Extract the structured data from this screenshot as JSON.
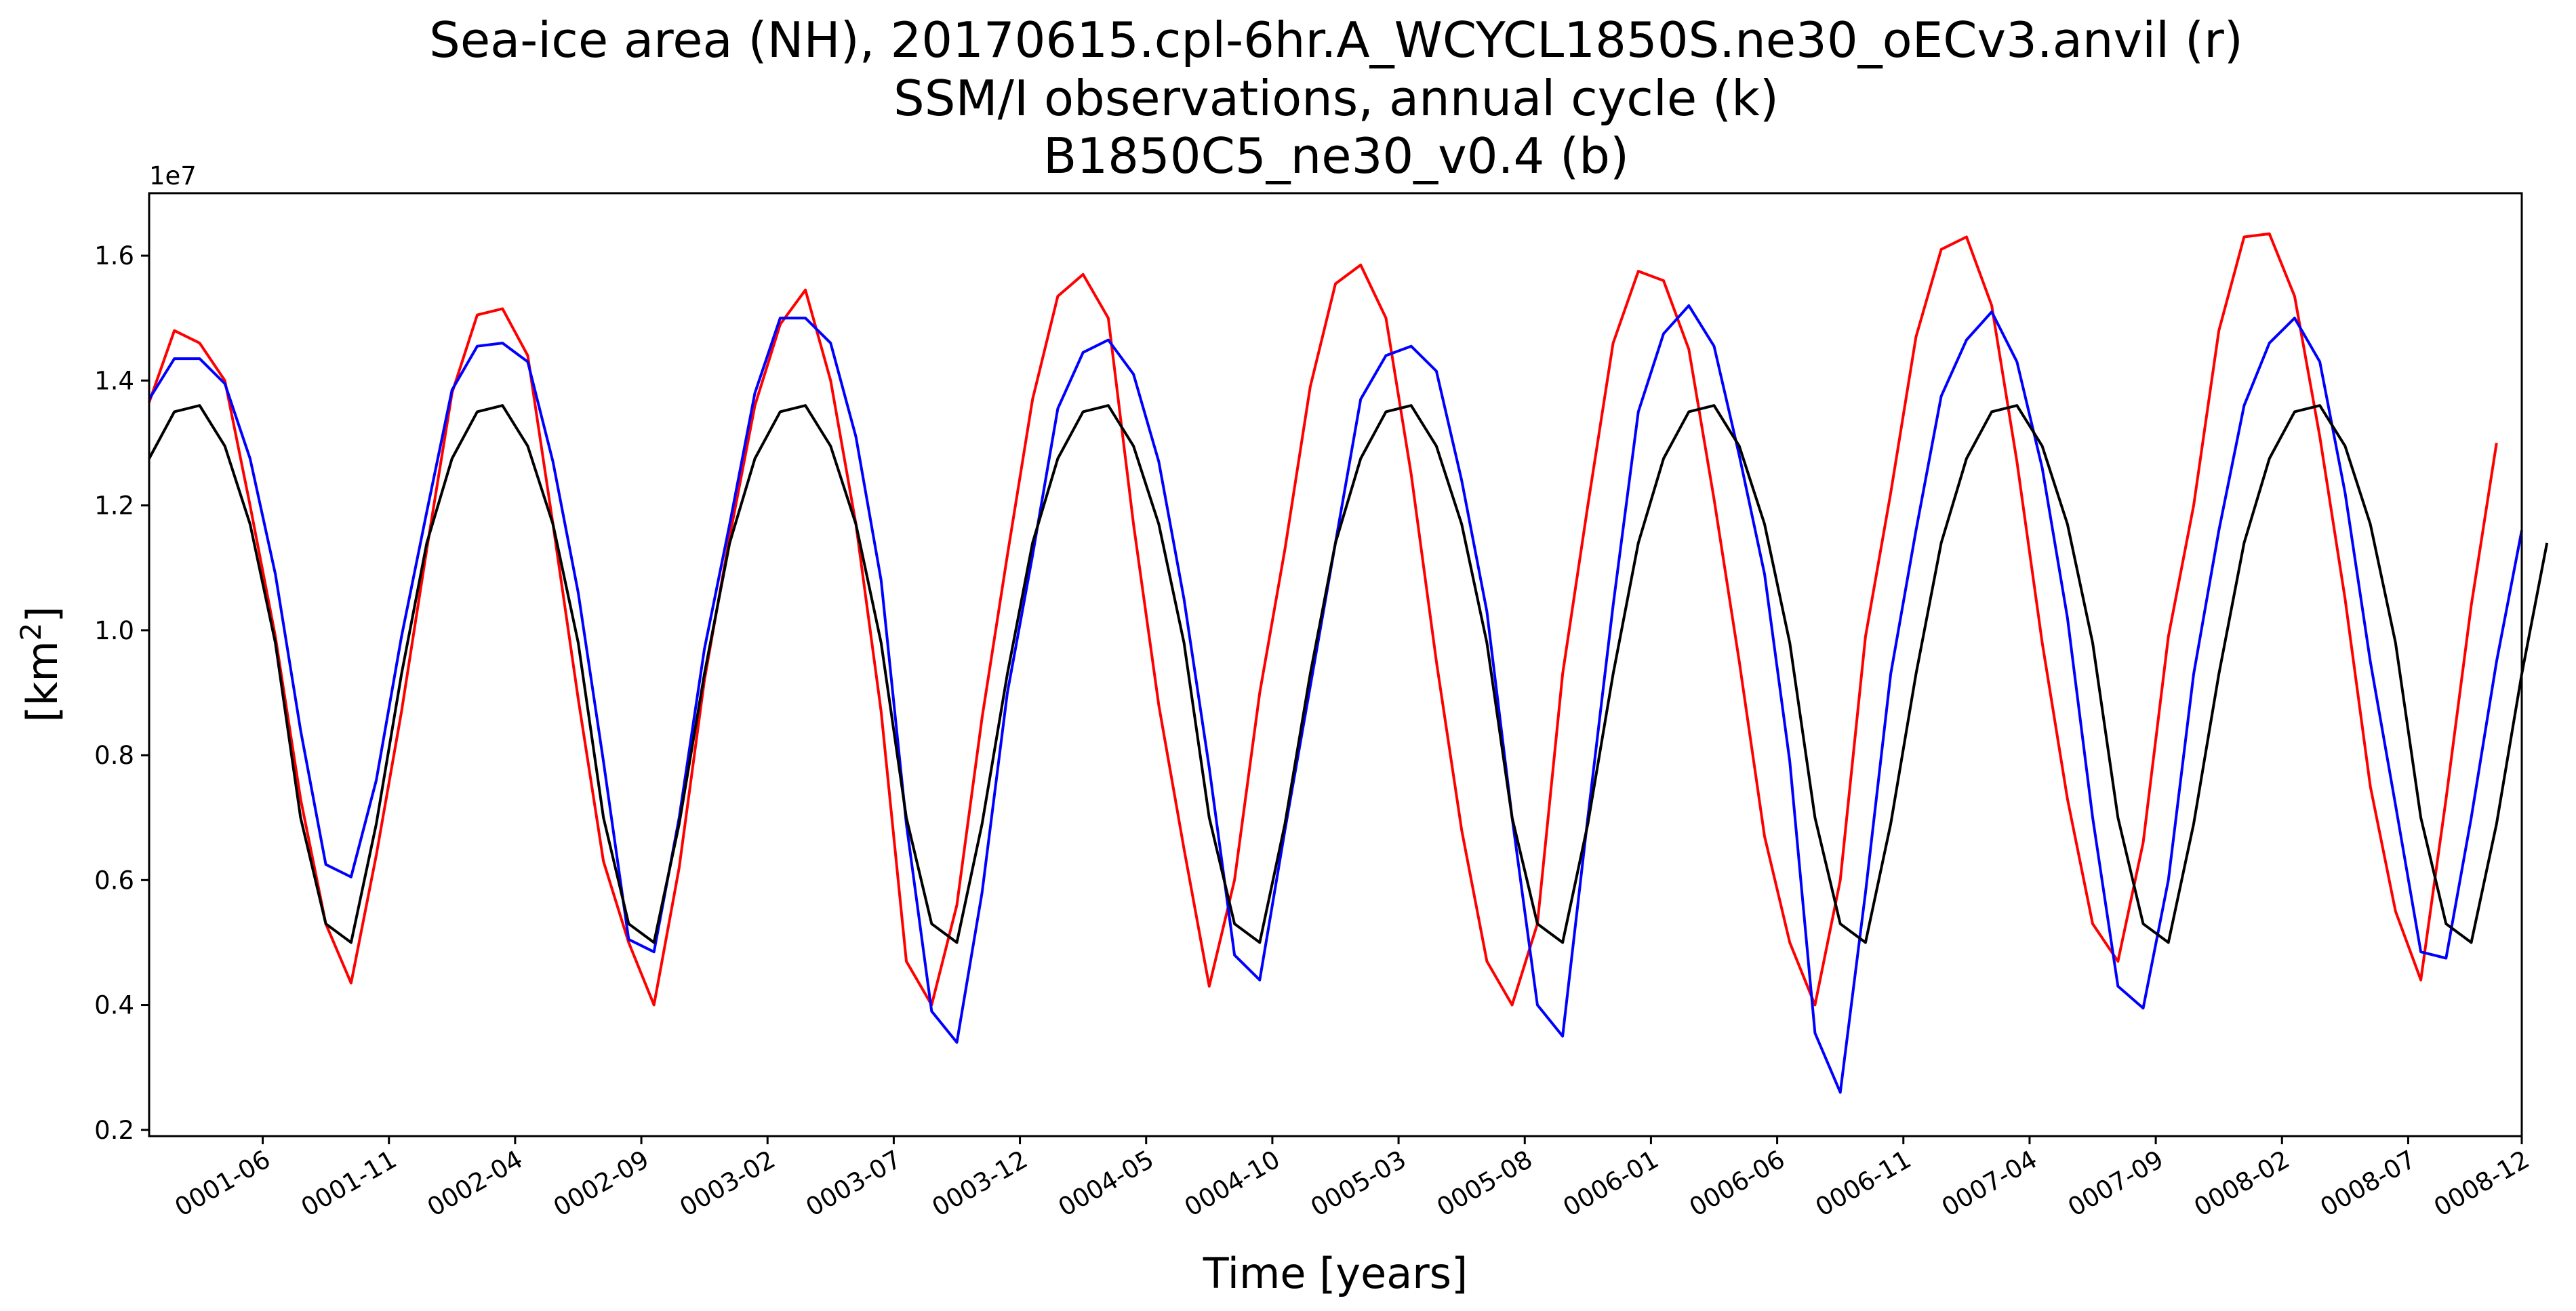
{
  "chart_data": {
    "type": "line",
    "title_lines": [
      "Sea-ice area (NH), 20170615.cpl-6hr.A_WCYCL1850S.ne30_oECv3.anvil (r)",
      "SSM/I observations, annual cycle (k)",
      "B1850C5_ne30_v0.4 (b)"
    ],
    "xlabel": "Time [years]",
    "ylabel": "[km",
    "ylabel_sup": "2",
    "ylabel_close": "]",
    "y_offset_label": "1e7",
    "ylim": [
      0.19,
      1.7
    ],
    "xlim": [
      1,
      95
    ],
    "y_ticks": [
      0.2,
      0.4,
      0.6,
      0.8,
      1.0,
      1.2,
      1.4,
      1.6
    ],
    "y_tick_labels": [
      "0.2",
      "0.4",
      "0.6",
      "0.8",
      "1.0",
      "1.2",
      "1.4",
      "1.6"
    ],
    "x_ticks": [
      5.5,
      10.5,
      15.5,
      20.5,
      25.5,
      30.5,
      35.5,
      40.5,
      45.5,
      50.5,
      55.5,
      60.5,
      65.5,
      70.5,
      75.5,
      80.5,
      85.5,
      90.5,
      95.5
    ],
    "x_tick_labels": [
      "0001-06",
      "0001-11",
      "0002-04",
      "0002-09",
      "0003-02",
      "0003-07",
      "0003-12",
      "0004-05",
      "0004-10",
      "0005-03",
      "0005-08",
      "0006-01",
      "0006-06",
      "0006-11",
      "0007-04",
      "0007-09",
      "0008-02",
      "0008-07",
      "0008-12"
    ],
    "grid": false,
    "legend": "none",
    "series": [
      {
        "color": "#ff0000",
        "values": [
          1.365,
          1.48,
          1.46,
          1.4,
          1.2,
          0.99,
          0.73,
          0.53,
          0.435,
          0.64,
          0.87,
          1.13,
          1.38,
          1.505,
          1.515,
          1.44,
          1.17,
          0.89,
          0.63,
          0.5,
          0.4,
          0.62,
          0.92,
          1.15,
          1.36,
          1.49,
          1.545,
          1.4,
          1.17,
          0.87,
          0.47,
          0.4,
          0.56,
          0.86,
          1.12,
          1.37,
          1.535,
          1.57,
          1.5,
          1.17,
          0.88,
          0.65,
          0.43,
          0.6,
          0.9,
          1.13,
          1.39,
          1.555,
          1.585,
          1.5,
          1.25,
          0.95,
          0.68,
          0.47,
          0.4,
          0.53,
          0.93,
          1.2,
          1.46,
          1.575,
          1.56,
          1.45,
          1.21,
          0.95,
          0.67,
          0.5,
          0.4,
          0.6,
          0.99,
          1.22,
          1.47,
          1.61,
          1.63,
          1.52,
          1.27,
          0.98,
          0.73,
          0.53,
          0.47,
          0.66,
          0.99,
          1.2,
          1.48,
          1.63,
          1.635,
          1.535,
          1.31,
          1.05,
          0.75,
          0.55,
          0.44,
          0.73,
          1.04,
          1.3
        ]
      },
      {
        "color": "#0000ff",
        "values": [
          1.37,
          1.435,
          1.435,
          1.395,
          1.275,
          1.09,
          0.84,
          0.625,
          0.605,
          0.76,
          0.99,
          1.19,
          1.385,
          1.455,
          1.46,
          1.43,
          1.27,
          1.06,
          0.79,
          0.505,
          0.485,
          0.7,
          0.97,
          1.17,
          1.38,
          1.5,
          1.5,
          1.46,
          1.31,
          1.08,
          0.69,
          0.39,
          0.34,
          0.58,
          0.9,
          1.12,
          1.355,
          1.445,
          1.465,
          1.41,
          1.27,
          1.05,
          0.78,
          0.48,
          0.44,
          0.68,
          0.91,
          1.14,
          1.37,
          1.44,
          1.455,
          1.415,
          1.24,
          1.03,
          0.7,
          0.4,
          0.35,
          0.7,
          1.04,
          1.35,
          1.475,
          1.52,
          1.455,
          1.28,
          1.09,
          0.79,
          0.355,
          0.26,
          0.58,
          0.93,
          1.16,
          1.375,
          1.465,
          1.51,
          1.43,
          1.26,
          1.02,
          0.7,
          0.43,
          0.395,
          0.6,
          0.93,
          1.16,
          1.36,
          1.46,
          1.5,
          1.43,
          1.22,
          0.95,
          0.72,
          0.485,
          0.475,
          0.7,
          0.95,
          1.16
        ]
      },
      {
        "color": "#000000",
        "values": [
          1.275,
          1.35,
          1.36,
          1.295,
          1.17,
          0.98,
          0.7,
          0.53,
          0.5,
          0.69,
          0.93,
          1.14,
          1.275,
          1.35,
          1.36,
          1.295,
          1.17,
          0.98,
          0.7,
          0.53,
          0.5,
          0.69,
          0.93,
          1.14,
          1.275,
          1.35,
          1.36,
          1.295,
          1.17,
          0.98,
          0.7,
          0.53,
          0.5,
          0.69,
          0.93,
          1.14,
          1.275,
          1.35,
          1.36,
          1.295,
          1.17,
          0.98,
          0.7,
          0.53,
          0.5,
          0.69,
          0.93,
          1.14,
          1.275,
          1.35,
          1.36,
          1.295,
          1.17,
          0.98,
          0.7,
          0.53,
          0.5,
          0.69,
          0.93,
          1.14,
          1.275,
          1.35,
          1.36,
          1.295,
          1.17,
          0.98,
          0.7,
          0.53,
          0.5,
          0.69,
          0.93,
          1.14,
          1.275,
          1.35,
          1.36,
          1.295,
          1.17,
          0.98,
          0.7,
          0.53,
          0.5,
          0.69,
          0.93,
          1.14,
          1.275,
          1.35,
          1.36,
          1.295,
          1.17,
          0.98,
          0.7,
          0.53,
          0.5,
          0.69,
          0.93,
          1.14
        ]
      }
    ]
  }
}
